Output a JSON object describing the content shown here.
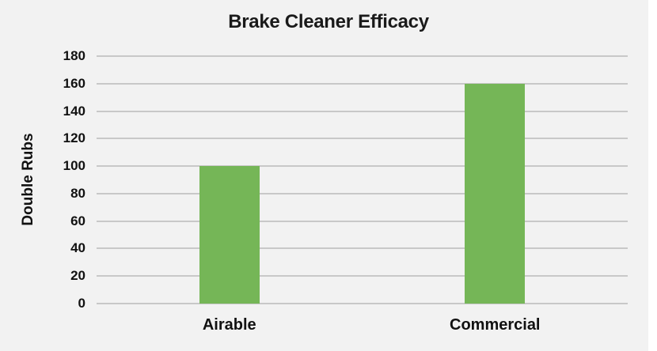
{
  "chart_data": {
    "type": "bar",
    "title": "Brake Cleaner Efficacy",
    "xlabel": "",
    "ylabel": "Double Rubs",
    "categories": [
      "Airable",
      "Commercial"
    ],
    "values": [
      100,
      160
    ],
    "ylim": [
      0,
      180
    ],
    "yticks": [
      "0",
      "20",
      "40",
      "60",
      "80",
      "100",
      "120",
      "140",
      "160",
      "180"
    ],
    "grid": true,
    "legend": null,
    "bar_color": "#75b657"
  }
}
